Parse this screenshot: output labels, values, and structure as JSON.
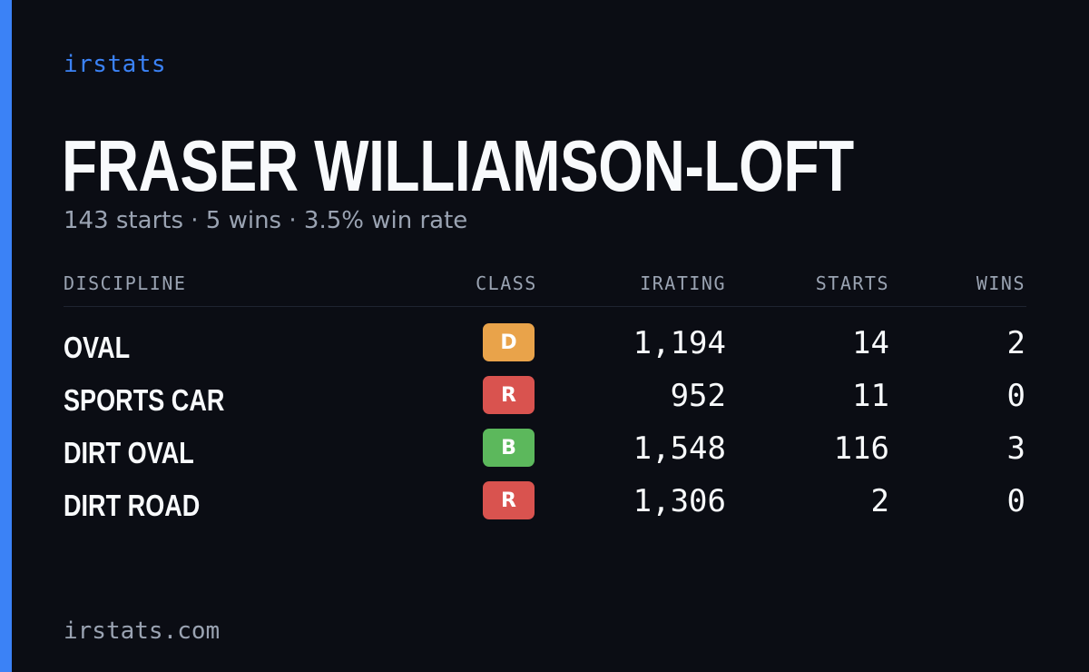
{
  "brand": "irstats",
  "driver": {
    "name": "FRASER WILLIAMSON-LOFT",
    "summary": "143 starts · 5 wins · 3.5% win rate"
  },
  "colors": {
    "accent": "#3b82f6",
    "background": "#0b0d14",
    "class_D": "#e9a34a",
    "class_R": "#d9534f",
    "class_B": "#5cb85c"
  },
  "table": {
    "headers": {
      "discipline": "DISCIPLINE",
      "class": "CLASS",
      "irating": "IRATING",
      "starts": "STARTS",
      "wins": "WINS"
    },
    "rows": [
      {
        "discipline": "OVAL",
        "class": "D",
        "class_color": "#e9a34a",
        "irating": "1,194",
        "starts": "14",
        "wins": "2"
      },
      {
        "discipline": "SPORTS CAR",
        "class": "R",
        "class_color": "#d9534f",
        "irating": "952",
        "starts": "11",
        "wins": "0"
      },
      {
        "discipline": "DIRT OVAL",
        "class": "B",
        "class_color": "#5cb85c",
        "irating": "1,548",
        "starts": "116",
        "wins": "3"
      },
      {
        "discipline": "DIRT ROAD",
        "class": "R",
        "class_color": "#d9534f",
        "irating": "1,306",
        "starts": "2",
        "wins": "0"
      }
    ]
  },
  "footer": "irstats.com"
}
